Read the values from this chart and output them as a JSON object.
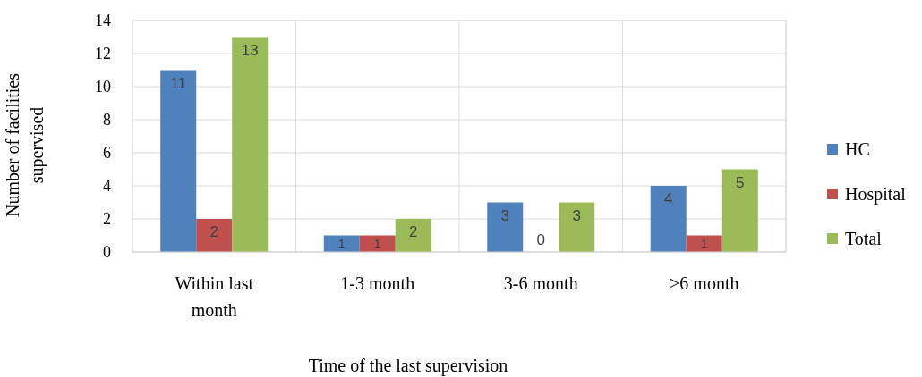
{
  "chart_data": {
    "type": "bar",
    "xlabel": "Time of the last supervision",
    "ylabel": "Number of facilities supervised",
    "categories": [
      "Within last month",
      "1-3 month",
      "3-6 month",
      ">6 month"
    ],
    "series": [
      {
        "name": "HC",
        "color": "#4f81bd",
        "values": [
          11,
          1,
          3,
          4
        ]
      },
      {
        "name": "Hospital",
        "color": "#c0504d",
        "values": [
          2,
          1,
          0,
          1
        ]
      },
      {
        "name": "Total",
        "color": "#9bbb59",
        "values": [
          13,
          2,
          3,
          5
        ]
      }
    ],
    "ylim": [
      0,
      14
    ],
    "yticks": [
      0,
      2,
      4,
      6,
      8,
      10,
      12,
      14
    ],
    "grid": true,
    "legend": "right",
    "data_labels": true
  }
}
